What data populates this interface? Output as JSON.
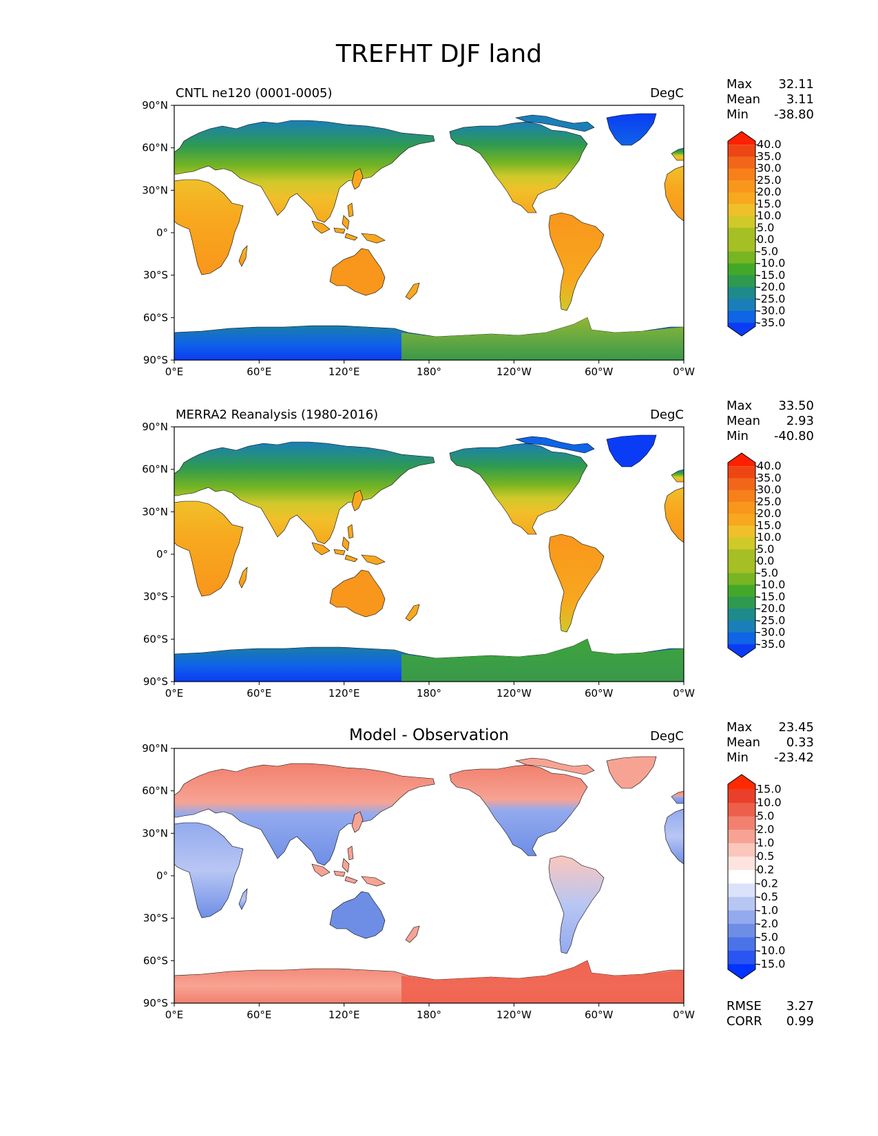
{
  "figure": {
    "title": "TREFHT DJF land"
  },
  "axes": {
    "lat_ticks": [
      "90°N",
      "60°N",
      "30°N",
      "0°",
      "30°S",
      "60°S",
      "90°S"
    ],
    "lon_ticks": [
      "0°E",
      "60°E",
      "120°E",
      "180°",
      "120°W",
      "60°W",
      "0°W"
    ]
  },
  "colors": {
    "ocean": "#ffffff",
    "coast": "#000000",
    "temp_scale": [
      "#0a3cf5",
      "#1064e6",
      "#1a7fb8",
      "#1f8a8a",
      "#2e9a50",
      "#43a82a",
      "#77b522",
      "#a6bf24",
      "#cfc92a",
      "#f0c02a",
      "#f8a81e",
      "#f9961c",
      "#f7801a",
      "#f2661a",
      "#ee4515",
      "#ff2000"
    ],
    "diff_scale": [
      "#0033ff",
      "#2a55f2",
      "#4a73e8",
      "#6e8ee6",
      "#93aaee",
      "#b8c6f4",
      "#dbe3fa",
      "#ffffff",
      "#fde4df",
      "#fbc6bb",
      "#f7a394",
      "#f2806e",
      "#ee5f4b",
      "#ea3f2a",
      "#ff2a00"
    ]
  },
  "panels": [
    {
      "id": "test",
      "title": "CNTL ne120 (0001-0005)",
      "units": "DegC",
      "stats": {
        "max_label": "Max",
        "max": "32.11",
        "mean_label": "Mean",
        "mean": "3.11",
        "min_label": "Min",
        "min": "-38.80"
      },
      "colorbar": {
        "levels": [
          "40.0",
          "35.0",
          "30.0",
          "25.0",
          "20.0",
          "15.0",
          "10.0",
          "5.0",
          "0.0",
          "-5.0",
          "-10.0",
          "-15.0",
          "-20.0",
          "-25.0",
          "-30.0",
          "-35.0"
        ],
        "palette": "temp_scale"
      }
    },
    {
      "id": "ref",
      "title": "MERRA2 Reanalysis (1980-2016)",
      "units": "DegC",
      "stats": {
        "max_label": "Max",
        "max": "33.50",
        "mean_label": "Mean",
        "mean": "2.93",
        "min_label": "Min",
        "min": "-40.80"
      },
      "colorbar": {
        "levels": [
          "40.0",
          "35.0",
          "30.0",
          "25.0",
          "20.0",
          "15.0",
          "10.0",
          "5.0",
          "0.0",
          "-5.0",
          "-10.0",
          "-15.0",
          "-20.0",
          "-25.0",
          "-30.0",
          "-35.0"
        ],
        "palette": "temp_scale"
      }
    },
    {
      "id": "diff",
      "title": "Model - Observation",
      "units": "DegC",
      "stats": {
        "max_label": "Max",
        "max": "23.45",
        "mean_label": "Mean",
        "mean": "0.33",
        "min_label": "Min",
        "min": "-23.42"
      },
      "colorbar": {
        "levels": [
          "15.0",
          "10.0",
          "5.0",
          "2.0",
          "1.0",
          "0.5",
          "0.2",
          "-0.2",
          "-0.5",
          "-1.0",
          "-2.0",
          "-5.0",
          "-10.0",
          "-15.0"
        ],
        "palette": "diff_scale"
      },
      "metrics": {
        "rmse_label": "RMSE",
        "rmse": "3.27",
        "corr_label": "CORR",
        "corr": "0.99"
      }
    }
  ]
}
